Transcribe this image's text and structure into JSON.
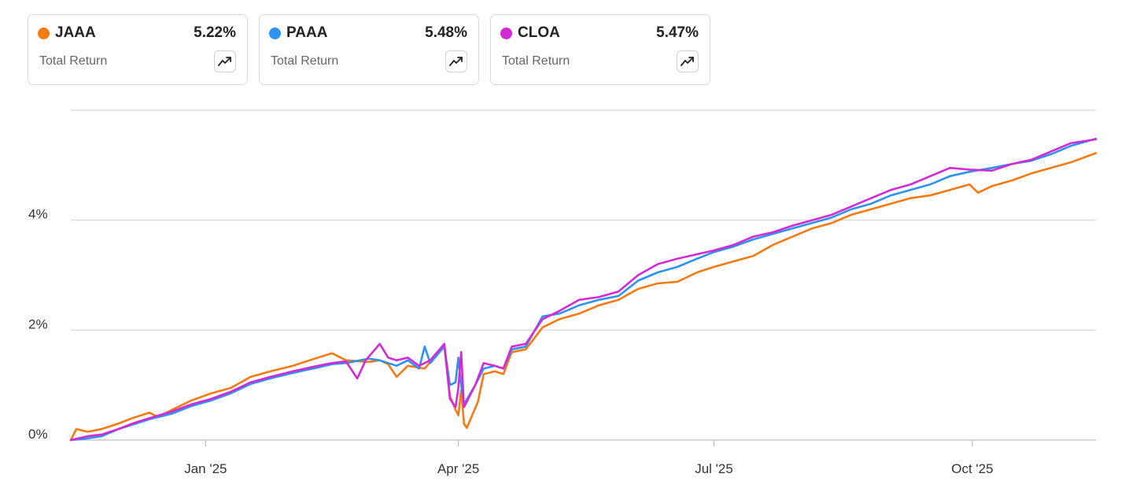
{
  "cards": [
    {
      "ticker": "JAAA",
      "value": "5.22%",
      "label": "Total Return",
      "color": "#f47a12",
      "icon": "trending-up-icon"
    },
    {
      "ticker": "PAAA",
      "value": "5.48%",
      "label": "Total Return",
      "color": "#2c93f0",
      "icon": "trending-up-icon"
    },
    {
      "ticker": "CLOA",
      "value": "5.47%",
      "label": "Total Return",
      "color": "#d32ad5",
      "icon": "trending-up-icon"
    }
  ],
  "chart_data": {
    "type": "line",
    "x_unit": "date",
    "xlim": [
      "2024-11-14",
      "2025-11-14"
    ],
    "ylim": [
      0,
      6
    ],
    "y_ticks": [
      0,
      2,
      4
    ],
    "y_tick_labels": [
      "0%",
      "2%",
      "4%"
    ],
    "x_ticks": [
      "2025-01-01",
      "2025-04-01",
      "2025-07-01",
      "2025-10-01"
    ],
    "x_tick_labels": [
      "Jan '25",
      "Apr '25",
      "Jul '25",
      "Oct '25"
    ],
    "grid": true,
    "series": [
      {
        "name": "JAAA",
        "color": "#f47a12",
        "points": [
          [
            "2024-11-14",
            0.0
          ],
          [
            "2024-11-16",
            0.2
          ],
          [
            "2024-11-20",
            0.15
          ],
          [
            "2024-11-25",
            0.2
          ],
          [
            "2024-12-01",
            0.3
          ],
          [
            "2024-12-06",
            0.4
          ],
          [
            "2024-12-12",
            0.5
          ],
          [
            "2024-12-15",
            0.42
          ],
          [
            "2024-12-20",
            0.55
          ],
          [
            "2024-12-27",
            0.72
          ],
          [
            "2025-01-03",
            0.85
          ],
          [
            "2025-01-10",
            0.95
          ],
          [
            "2025-01-17",
            1.15
          ],
          [
            "2025-01-24",
            1.25
          ],
          [
            "2025-02-01",
            1.35
          ],
          [
            "2025-02-10",
            1.5
          ],
          [
            "2025-02-15",
            1.58
          ],
          [
            "2025-02-20",
            1.45
          ],
          [
            "2025-02-28",
            1.42
          ],
          [
            "2025-03-04",
            1.45
          ],
          [
            "2025-03-07",
            1.38
          ],
          [
            "2025-03-10",
            1.15
          ],
          [
            "2025-03-14",
            1.35
          ],
          [
            "2025-03-20",
            1.3
          ],
          [
            "2025-03-25",
            1.6
          ],
          [
            "2025-03-27",
            1.7
          ],
          [
            "2025-03-29",
            0.8
          ],
          [
            "2025-03-31",
            0.55
          ],
          [
            "2025-04-01",
            0.45
          ],
          [
            "2025-04-02",
            0.9
          ],
          [
            "2025-04-03",
            0.3
          ],
          [
            "2025-04-04",
            0.22
          ],
          [
            "2025-04-08",
            0.7
          ],
          [
            "2025-04-10",
            1.2
          ],
          [
            "2025-04-14",
            1.25
          ],
          [
            "2025-04-17",
            1.2
          ],
          [
            "2025-04-20",
            1.6
          ],
          [
            "2025-04-25",
            1.65
          ],
          [
            "2025-05-01",
            2.05
          ],
          [
            "2025-05-07",
            2.2
          ],
          [
            "2025-05-14",
            2.3
          ],
          [
            "2025-05-21",
            2.45
          ],
          [
            "2025-05-28",
            2.55
          ],
          [
            "2025-06-04",
            2.75
          ],
          [
            "2025-06-11",
            2.85
          ],
          [
            "2025-06-18",
            2.88
          ],
          [
            "2025-06-25",
            3.05
          ],
          [
            "2025-07-01",
            3.15
          ],
          [
            "2025-07-08",
            3.25
          ],
          [
            "2025-07-15",
            3.35
          ],
          [
            "2025-07-22",
            3.55
          ],
          [
            "2025-07-29",
            3.7
          ],
          [
            "2025-08-05",
            3.85
          ],
          [
            "2025-08-12",
            3.95
          ],
          [
            "2025-08-19",
            4.1
          ],
          [
            "2025-08-26",
            4.2
          ],
          [
            "2025-09-02",
            4.3
          ],
          [
            "2025-09-09",
            4.4
          ],
          [
            "2025-09-16",
            4.45
          ],
          [
            "2025-09-23",
            4.55
          ],
          [
            "2025-09-30",
            4.65
          ],
          [
            "2025-10-03",
            4.5
          ],
          [
            "2025-10-08",
            4.62
          ],
          [
            "2025-10-15",
            4.72
          ],
          [
            "2025-10-22",
            4.85
          ],
          [
            "2025-10-29",
            4.95
          ],
          [
            "2025-11-05",
            5.05
          ],
          [
            "2025-11-14",
            5.22
          ]
        ]
      },
      {
        "name": "PAAA",
        "color": "#2c93f0",
        "points": [
          [
            "2024-11-14",
            0.0
          ],
          [
            "2024-11-20",
            0.03
          ],
          [
            "2024-11-25",
            0.07
          ],
          [
            "2024-12-01",
            0.2
          ],
          [
            "2024-12-06",
            0.28
          ],
          [
            "2024-12-12",
            0.38
          ],
          [
            "2024-12-20",
            0.48
          ],
          [
            "2024-12-27",
            0.62
          ],
          [
            "2025-01-03",
            0.72
          ],
          [
            "2025-01-10",
            0.85
          ],
          [
            "2025-01-17",
            1.02
          ],
          [
            "2025-01-24",
            1.12
          ],
          [
            "2025-02-01",
            1.22
          ],
          [
            "2025-02-10",
            1.32
          ],
          [
            "2025-02-15",
            1.38
          ],
          [
            "2025-02-20",
            1.4
          ],
          [
            "2025-02-28",
            1.48
          ],
          [
            "2025-03-04",
            1.45
          ],
          [
            "2025-03-07",
            1.4
          ],
          [
            "2025-03-10",
            1.35
          ],
          [
            "2025-03-14",
            1.45
          ],
          [
            "2025-03-18",
            1.3
          ],
          [
            "2025-03-20",
            1.7
          ],
          [
            "2025-03-22",
            1.4
          ],
          [
            "2025-03-27",
            1.7
          ],
          [
            "2025-03-29",
            1.0
          ],
          [
            "2025-03-31",
            1.05
          ],
          [
            "2025-04-01",
            1.5
          ],
          [
            "2025-04-02",
            1.0
          ],
          [
            "2025-04-03",
            0.65
          ],
          [
            "2025-04-07",
            1.0
          ],
          [
            "2025-04-10",
            1.3
          ],
          [
            "2025-04-14",
            1.35
          ],
          [
            "2025-04-17",
            1.3
          ],
          [
            "2025-04-20",
            1.65
          ],
          [
            "2025-04-25",
            1.7
          ],
          [
            "2025-05-01",
            2.25
          ],
          [
            "2025-05-07",
            2.3
          ],
          [
            "2025-05-14",
            2.45
          ],
          [
            "2025-05-21",
            2.55
          ],
          [
            "2025-05-28",
            2.62
          ],
          [
            "2025-06-04",
            2.9
          ],
          [
            "2025-06-11",
            3.05
          ],
          [
            "2025-06-18",
            3.15
          ],
          [
            "2025-06-25",
            3.3
          ],
          [
            "2025-07-01",
            3.42
          ],
          [
            "2025-07-08",
            3.52
          ],
          [
            "2025-07-15",
            3.65
          ],
          [
            "2025-07-22",
            3.75
          ],
          [
            "2025-07-29",
            3.85
          ],
          [
            "2025-08-05",
            3.95
          ],
          [
            "2025-08-12",
            4.05
          ],
          [
            "2025-08-19",
            4.2
          ],
          [
            "2025-08-26",
            4.3
          ],
          [
            "2025-09-02",
            4.45
          ],
          [
            "2025-09-09",
            4.55
          ],
          [
            "2025-09-16",
            4.65
          ],
          [
            "2025-09-23",
            4.8
          ],
          [
            "2025-09-30",
            4.88
          ],
          [
            "2025-10-08",
            4.95
          ],
          [
            "2025-10-15",
            5.02
          ],
          [
            "2025-10-22",
            5.08
          ],
          [
            "2025-10-29",
            5.2
          ],
          [
            "2025-11-05",
            5.35
          ],
          [
            "2025-11-14",
            5.48
          ]
        ]
      },
      {
        "name": "CLOA",
        "color": "#d32ad5",
        "points": [
          [
            "2024-11-14",
            0.0
          ],
          [
            "2024-11-20",
            0.07
          ],
          [
            "2024-11-25",
            0.1
          ],
          [
            "2024-12-01",
            0.2
          ],
          [
            "2024-12-06",
            0.3
          ],
          [
            "2024-12-12",
            0.4
          ],
          [
            "2024-12-20",
            0.52
          ],
          [
            "2024-12-27",
            0.65
          ],
          [
            "2025-01-03",
            0.75
          ],
          [
            "2025-01-10",
            0.88
          ],
          [
            "2025-01-17",
            1.05
          ],
          [
            "2025-01-24",
            1.15
          ],
          [
            "2025-02-01",
            1.25
          ],
          [
            "2025-02-10",
            1.35
          ],
          [
            "2025-02-15",
            1.4
          ],
          [
            "2025-02-20",
            1.43
          ],
          [
            "2025-02-24",
            1.12
          ],
          [
            "2025-02-27",
            1.45
          ],
          [
            "2025-03-04",
            1.75
          ],
          [
            "2025-03-07",
            1.5
          ],
          [
            "2025-03-10",
            1.45
          ],
          [
            "2025-03-14",
            1.5
          ],
          [
            "2025-03-18",
            1.35
          ],
          [
            "2025-03-22",
            1.45
          ],
          [
            "2025-03-27",
            1.75
          ],
          [
            "2025-03-29",
            0.75
          ],
          [
            "2025-03-31",
            0.6
          ],
          [
            "2025-04-01",
            0.95
          ],
          [
            "2025-04-02",
            1.6
          ],
          [
            "2025-04-03",
            0.6
          ],
          [
            "2025-04-07",
            1.0
          ],
          [
            "2025-04-10",
            1.4
          ],
          [
            "2025-04-14",
            1.35
          ],
          [
            "2025-04-17",
            1.3
          ],
          [
            "2025-04-20",
            1.7
          ],
          [
            "2025-04-25",
            1.75
          ],
          [
            "2025-05-01",
            2.2
          ],
          [
            "2025-05-07",
            2.35
          ],
          [
            "2025-05-14",
            2.55
          ],
          [
            "2025-05-21",
            2.6
          ],
          [
            "2025-05-28",
            2.7
          ],
          [
            "2025-06-04",
            3.0
          ],
          [
            "2025-06-11",
            3.2
          ],
          [
            "2025-06-18",
            3.3
          ],
          [
            "2025-06-25",
            3.38
          ],
          [
            "2025-07-01",
            3.45
          ],
          [
            "2025-07-08",
            3.55
          ],
          [
            "2025-07-15",
            3.7
          ],
          [
            "2025-07-22",
            3.78
          ],
          [
            "2025-07-29",
            3.9
          ],
          [
            "2025-08-05",
            4.0
          ],
          [
            "2025-08-12",
            4.1
          ],
          [
            "2025-08-19",
            4.25
          ],
          [
            "2025-08-26",
            4.4
          ],
          [
            "2025-09-02",
            4.55
          ],
          [
            "2025-09-09",
            4.65
          ],
          [
            "2025-09-16",
            4.8
          ],
          [
            "2025-09-23",
            4.95
          ],
          [
            "2025-09-30",
            4.92
          ],
          [
            "2025-10-08",
            4.9
          ],
          [
            "2025-10-15",
            5.02
          ],
          [
            "2025-10-22",
            5.1
          ],
          [
            "2025-10-29",
            5.25
          ],
          [
            "2025-11-05",
            5.4
          ],
          [
            "2025-11-14",
            5.47
          ]
        ]
      }
    ]
  }
}
